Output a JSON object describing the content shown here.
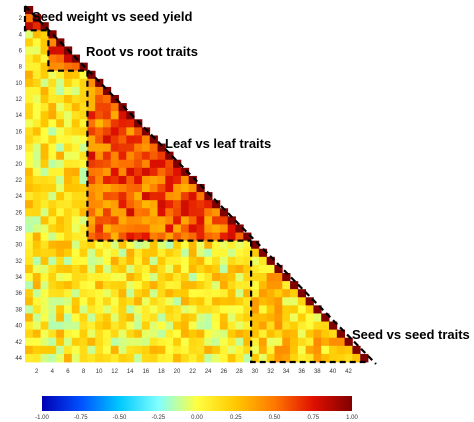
{
  "chart_data": {
    "type": "heatmap",
    "title": "",
    "xlabel": "",
    "ylabel": "",
    "shape": "lower-triangle",
    "n_traits": 44,
    "x_ticks": [
      "2",
      "4",
      "6",
      "8",
      "10",
      "12",
      "14",
      "16",
      "18",
      "20",
      "22",
      "24",
      "26",
      "28",
      "30",
      "32",
      "34",
      "36",
      "38",
      "40",
      "42"
    ],
    "y_ticks": [
      "2",
      "4",
      "6",
      "8",
      "10",
      "12",
      "14",
      "16",
      "18",
      "20",
      "22",
      "24",
      "26",
      "28",
      "30",
      "32",
      "34",
      "36",
      "38",
      "40",
      "42",
      "44"
    ],
    "color_scale": {
      "min": -1.0,
      "max": 1.0,
      "ticks": [
        "-1.00",
        "-0.75",
        "-0.50",
        "-0.25",
        "0.00",
        "0.25",
        "0.50",
        "0.75",
        "1.00"
      ],
      "colors": [
        "#0000b4",
        "#0050ff",
        "#00c8ff",
        "#80ffff",
        "#ffff40",
        "#ffc800",
        "#ff7800",
        "#e01000",
        "#800000"
      ]
    },
    "blocks": [
      {
        "label": "Seed weight vs seed yield",
        "from_trait": 1,
        "to_trait": 3
      },
      {
        "label": "Root vs root traits",
        "from_trait": 4,
        "to_trait": 8
      },
      {
        "label": "Leaf vs leaf traits",
        "from_trait": 9,
        "to_trait": 29
      },
      {
        "label": "Seed vs seed traits",
        "from_trait": 30,
        "to_trait": 44
      }
    ],
    "typical_correlation": {
      "seed_weight_vs_seed_yield": 0.6,
      "root_vs_root": 0.6,
      "leaf_vs_leaf": 0.55,
      "seed_vs_seed": 0.2,
      "between_groups": 0.1
    }
  }
}
